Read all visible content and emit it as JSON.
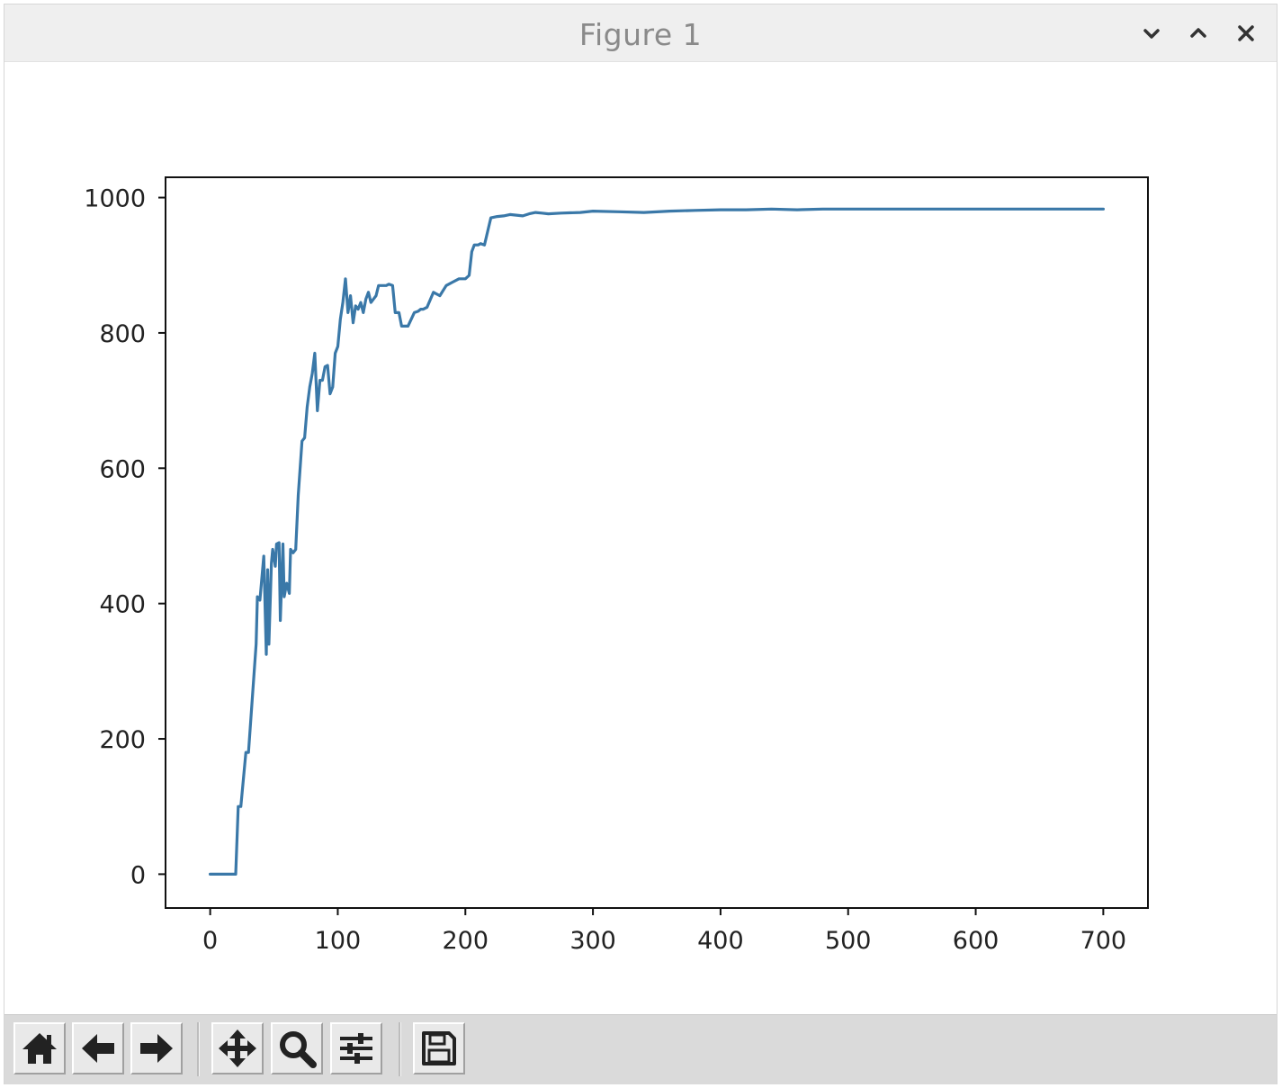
{
  "window": {
    "title": "Figure 1",
    "controls": [
      "chevron-down-icon",
      "chevron-up-icon",
      "close-icon"
    ]
  },
  "toolbar": {
    "buttons": [
      {
        "name": "home-button",
        "icon": "home-icon"
      },
      {
        "name": "back-button",
        "icon": "arrow-left-icon"
      },
      {
        "name": "forward-button",
        "icon": "arrow-right-icon"
      },
      {
        "name": "pan-button",
        "icon": "move-arrows-icon"
      },
      {
        "name": "zoom-button",
        "icon": "magnifier-icon"
      },
      {
        "name": "configure-subplots-button",
        "icon": "sliders-icon"
      },
      {
        "name": "save-button",
        "icon": "floppy-disk-icon"
      }
    ]
  },
  "colors": {
    "line": "#3a78a8",
    "titlebar_bg": "#efefef",
    "toolbar_bg": "#dadada"
  },
  "chart_data": {
    "type": "line",
    "title": "",
    "xlabel": "",
    "ylabel": "",
    "xlim": [
      -35,
      735
    ],
    "ylim": [
      -50,
      1030
    ],
    "xticks": [
      0,
      100,
      200,
      300,
      400,
      500,
      600,
      700
    ],
    "yticks": [
      0,
      200,
      400,
      600,
      800,
      1000
    ],
    "grid": false,
    "series": [
      {
        "name": "",
        "color": "#3a78a8",
        "x": [
          0,
          20,
          22,
          24,
          28,
          30,
          36,
          37,
          39,
          42,
          44,
          45,
          46,
          48,
          49,
          51,
          52,
          54,
          55,
          57,
          58,
          60,
          62,
          63,
          65,
          67,
          69,
          72,
          74,
          76,
          78,
          80,
          82,
          84,
          86,
          88,
          90,
          92,
          94,
          96,
          98,
          100,
          102,
          104,
          106,
          108,
          110,
          112,
          114,
          116,
          118,
          120,
          122,
          124,
          126,
          128,
          130,
          132,
          135,
          138,
          140,
          143,
          145,
          148,
          150,
          155,
          160,
          163,
          165,
          167,
          170,
          175,
          180,
          185,
          190,
          195,
          200,
          203,
          205,
          207,
          210,
          212,
          215,
          220,
          225,
          230,
          235,
          240,
          245,
          250,
          255,
          260,
          265,
          275,
          290,
          300,
          320,
          340,
          360,
          380,
          400,
          420,
          440,
          460,
          480,
          500,
          550,
          600,
          650,
          700
        ],
        "y": [
          0,
          0,
          100,
          100,
          180,
          180,
          340,
          410,
          405,
          470,
          325,
          450,
          340,
          460,
          480,
          455,
          488,
          490,
          375,
          488,
          410,
          430,
          415,
          480,
          475,
          480,
          560,
          640,
          645,
          690,
          720,
          740,
          770,
          685,
          730,
          730,
          750,
          752,
          710,
          720,
          770,
          780,
          820,
          845,
          880,
          830,
          855,
          815,
          840,
          835,
          845,
          830,
          850,
          860,
          845,
          850,
          855,
          870,
          870,
          870,
          872,
          870,
          830,
          830,
          810,
          810,
          830,
          832,
          835,
          835,
          838,
          860,
          855,
          870,
          875,
          880,
          880,
          885,
          920,
          930,
          930,
          932,
          930,
          970,
          972,
          973,
          975,
          974,
          973,
          976,
          978,
          977,
          976,
          977,
          978,
          980,
          979,
          978,
          980,
          981,
          982,
          982,
          983,
          982,
          983,
          983,
          983,
          983,
          983,
          983
        ]
      }
    ]
  }
}
